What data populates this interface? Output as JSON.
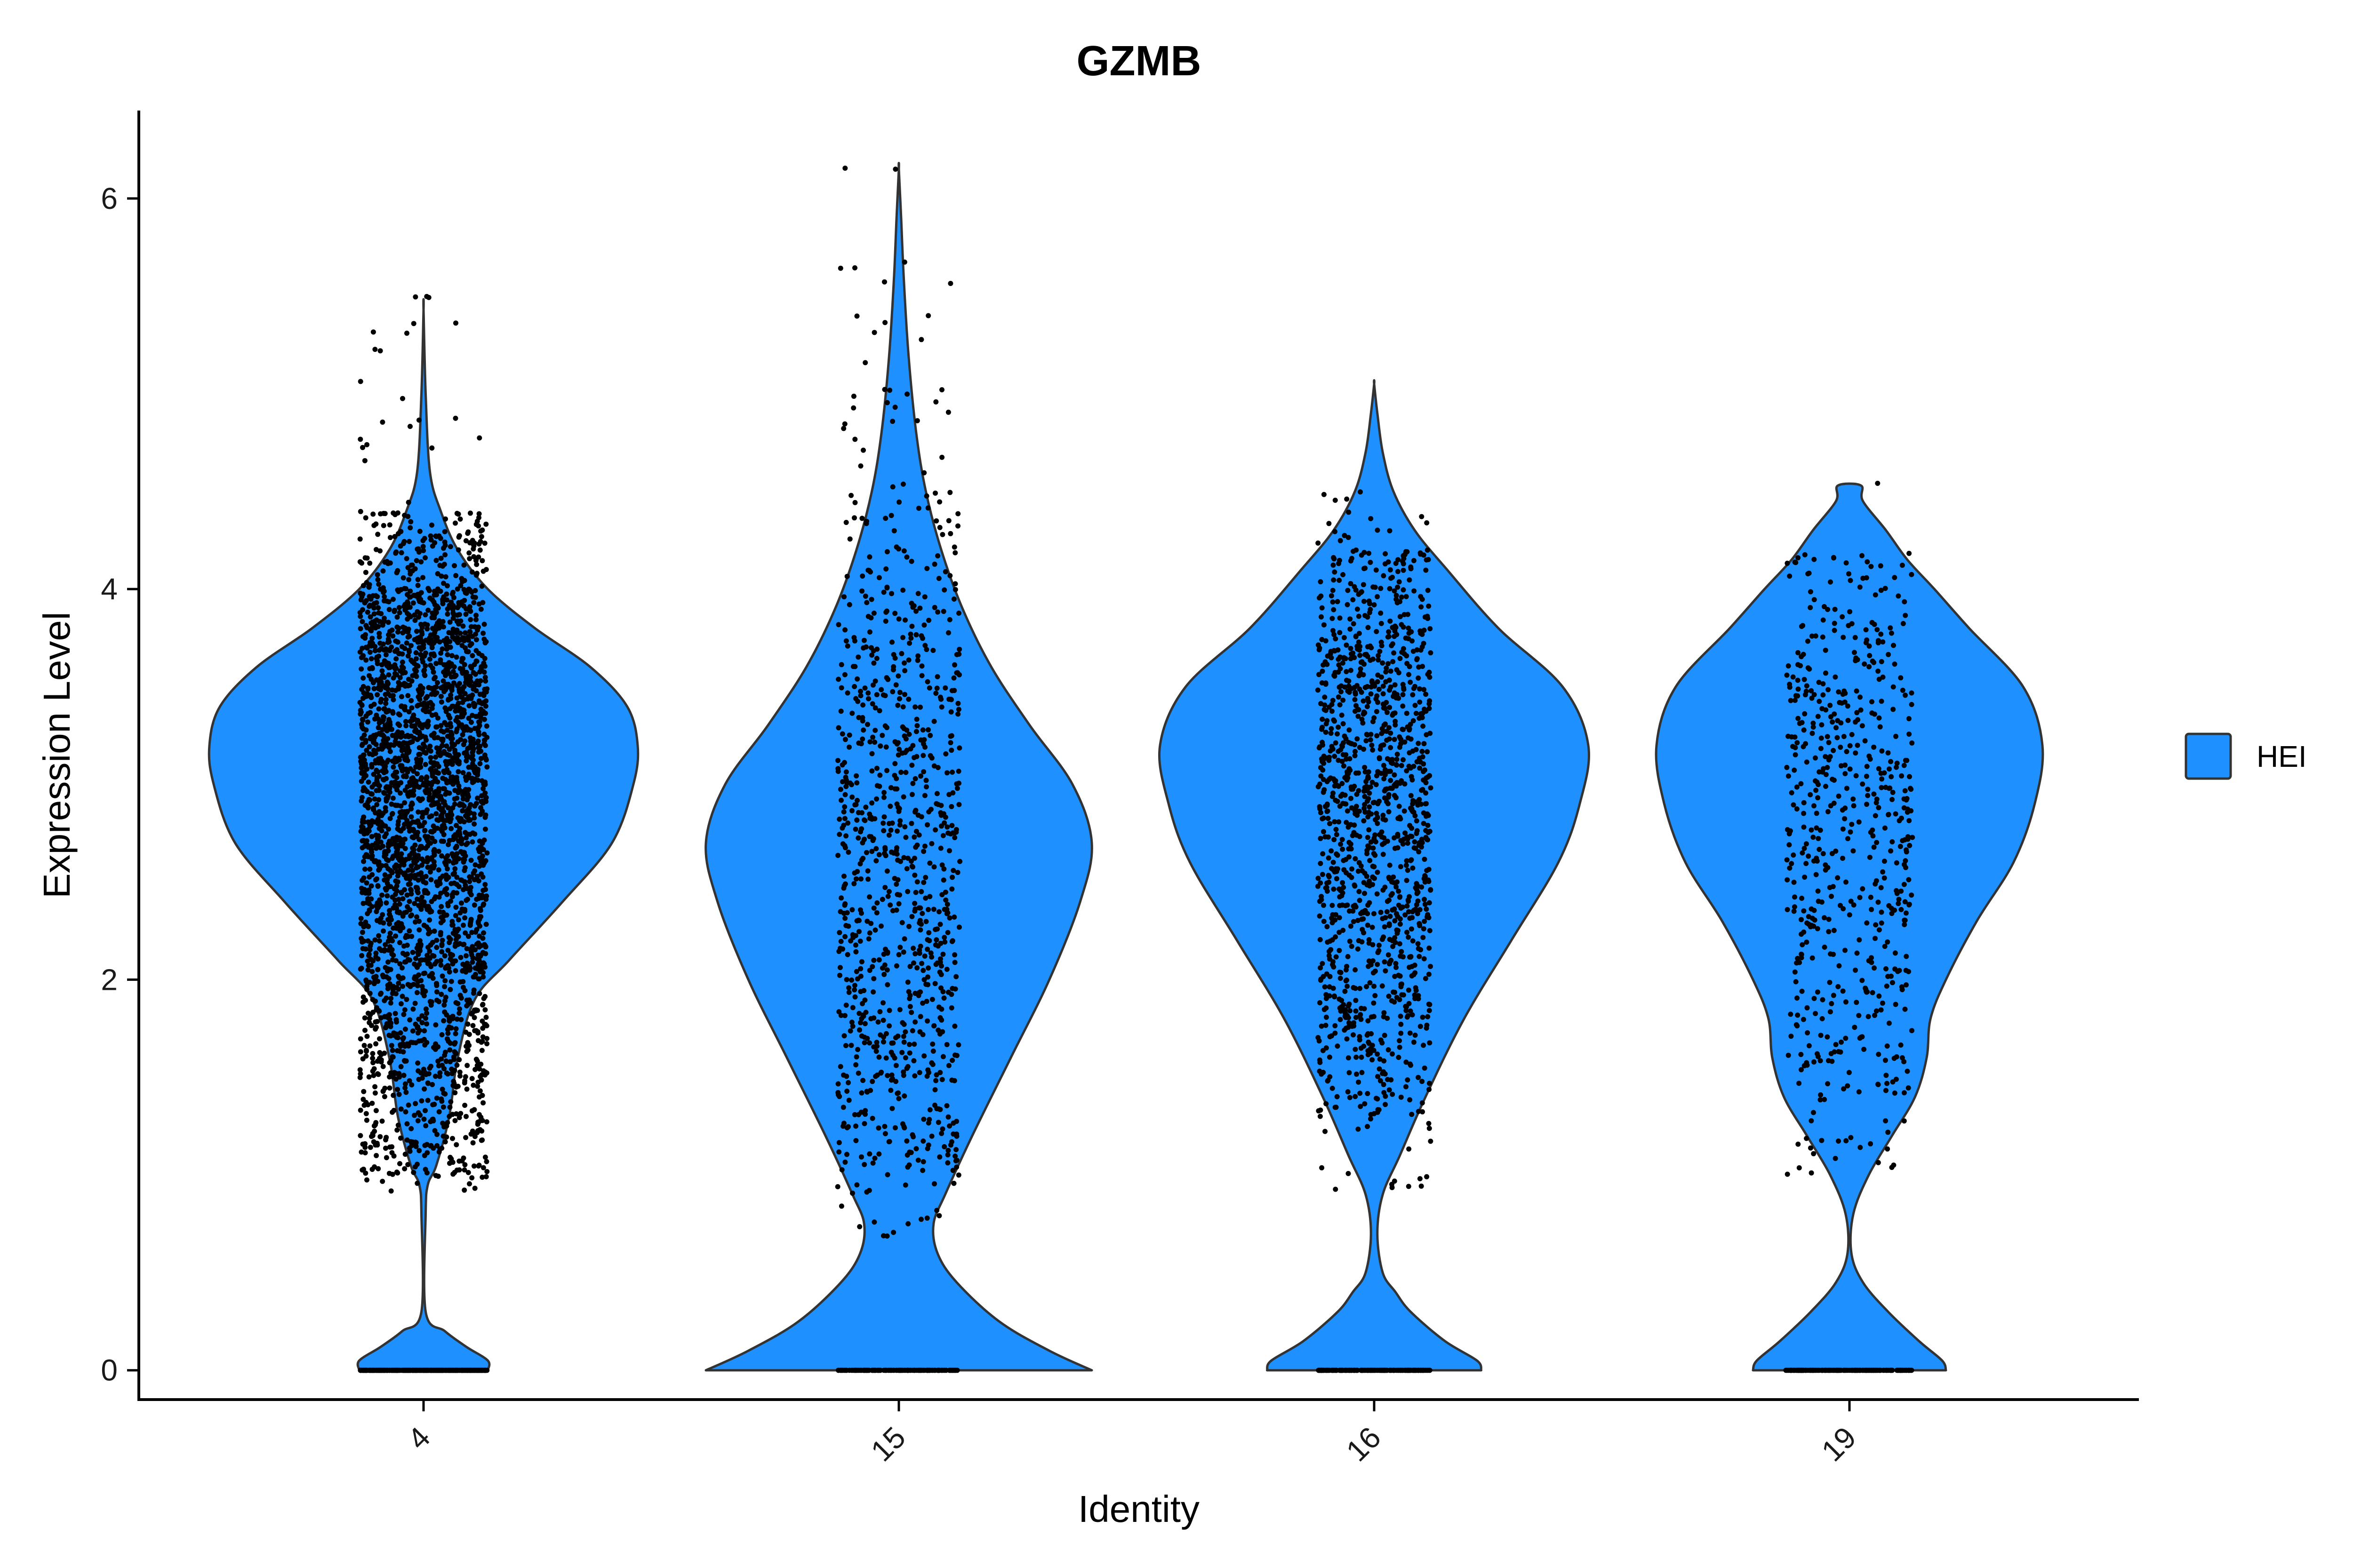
{
  "chart_data": {
    "type": "violin",
    "title": "GZMB",
    "xlabel": "Identity",
    "ylabel": "Expression Level",
    "ylim": [
      -0.15,
      6.45
    ],
    "yticks": [
      0,
      2,
      4,
      6
    ],
    "categories": [
      "4",
      "15",
      "16",
      "19"
    ],
    "legend": {
      "position": "right",
      "entries": [
        "HEI"
      ]
    },
    "fill_color": "#1E90FF",
    "outline_color": "#333333",
    "point_color": "#000000",
    "series": [
      {
        "name": "HEI",
        "violins": [
          {
            "category": "4",
            "max": 5.43,
            "profile": [
              [
                0,
                0.3
              ],
              [
                0.05,
                0.3
              ],
              [
                0.12,
                0.2
              ],
              [
                0.2,
                0.1
              ],
              [
                0.3,
                0.01
              ],
              [
                0.8,
                0.01
              ],
              [
                0.95,
                0.02
              ],
              [
                1.05,
                0.06
              ],
              [
                1.3,
                0.12
              ],
              [
                1.6,
                0.16
              ],
              [
                1.9,
                0.24
              ],
              [
                2.1,
                0.4
              ],
              [
                2.4,
                0.65
              ],
              [
                2.7,
                0.88
              ],
              [
                3.0,
                0.98
              ],
              [
                3.2,
                1.0
              ],
              [
                3.4,
                0.95
              ],
              [
                3.6,
                0.78
              ],
              [
                3.8,
                0.52
              ],
              [
                4.0,
                0.3
              ],
              [
                4.2,
                0.16
              ],
              [
                4.4,
                0.08
              ],
              [
                4.6,
                0.03
              ],
              [
                5.0,
                0.01
              ],
              [
                5.43,
                0.0
              ]
            ],
            "jitter": [
              [
                0,
                0.0,
                500
              ],
              [
                0.9,
                1.0,
                12
              ],
              [
                1.0,
                1.5,
                220
              ],
              [
                1.5,
                2.0,
                330
              ],
              [
                2.0,
                2.5,
                450
              ],
              [
                2.5,
                3.0,
                600
              ],
              [
                3.0,
                3.5,
                650
              ],
              [
                3.5,
                4.0,
                520
              ],
              [
                4.0,
                4.4,
                160
              ],
              [
                4.4,
                5.5,
                22
              ]
            ]
          },
          {
            "category": "15",
            "max": 6.15,
            "profile": [
              [
                0,
                1.0
              ],
              [
                0.1,
                0.78
              ],
              [
                0.25,
                0.52
              ],
              [
                0.45,
                0.3
              ],
              [
                0.6,
                0.2
              ],
              [
                0.75,
                0.18
              ],
              [
                0.9,
                0.24
              ],
              [
                1.2,
                0.38
              ],
              [
                1.6,
                0.58
              ],
              [
                2.0,
                0.78
              ],
              [
                2.4,
                0.94
              ],
              [
                2.7,
                1.0
              ],
              [
                3.0,
                0.9
              ],
              [
                3.3,
                0.68
              ],
              [
                3.6,
                0.48
              ],
              [
                3.9,
                0.33
              ],
              [
                4.2,
                0.22
              ],
              [
                4.5,
                0.14
              ],
              [
                4.8,
                0.09
              ],
              [
                5.2,
                0.05
              ],
              [
                5.6,
                0.025
              ],
              [
                5.9,
                0.012
              ],
              [
                6.15,
                0.0
              ]
            ],
            "jitter": [
              [
                0,
                0.0,
                160
              ],
              [
                0.65,
                1.0,
                20
              ],
              [
                1.0,
                1.5,
                110
              ],
              [
                1.5,
                2.0,
                150
              ],
              [
                2.0,
                2.5,
                160
              ],
              [
                2.5,
                3.0,
                170
              ],
              [
                3.0,
                3.5,
                140
              ],
              [
                3.5,
                4.0,
                100
              ],
              [
                4.0,
                4.5,
                50
              ],
              [
                4.5,
                5.0,
                18
              ],
              [
                5.0,
                5.7,
                14
              ],
              [
                6.1,
                6.16,
                2
              ]
            ]
          },
          {
            "category": "16",
            "max": 5.05,
            "profile": [
              [
                0,
                0.5
              ],
              [
                0.05,
                0.48
              ],
              [
                0.15,
                0.33
              ],
              [
                0.3,
                0.17
              ],
              [
                0.4,
                0.1
              ],
              [
                0.5,
                0.04
              ],
              [
                0.7,
                0.015
              ],
              [
                0.9,
                0.04
              ],
              [
                1.1,
                0.12
              ],
              [
                1.4,
                0.24
              ],
              [
                1.8,
                0.42
              ],
              [
                2.2,
                0.64
              ],
              [
                2.6,
                0.86
              ],
              [
                2.9,
                0.96
              ],
              [
                3.2,
                1.0
              ],
              [
                3.5,
                0.88
              ],
              [
                3.8,
                0.58
              ],
              [
                4.1,
                0.34
              ],
              [
                4.3,
                0.19
              ],
              [
                4.5,
                0.09
              ],
              [
                4.7,
                0.04
              ],
              [
                4.9,
                0.015
              ],
              [
                5.05,
                0.0
              ]
            ],
            "jitter": [
              [
                0,
                0.0,
                220
              ],
              [
                0.9,
                1.3,
                18
              ],
              [
                1.3,
                1.8,
                130
              ],
              [
                1.8,
                2.3,
                200
              ],
              [
                2.3,
                2.8,
                260
              ],
              [
                2.8,
                3.3,
                300
              ],
              [
                3.3,
                3.8,
                250
              ],
              [
                3.8,
                4.2,
                120
              ],
              [
                4.2,
                4.5,
                16
              ]
            ]
          },
          {
            "category": "19",
            "max": 4.53,
            "profile": [
              [
                0,
                0.5
              ],
              [
                0.05,
                0.48
              ],
              [
                0.15,
                0.36
              ],
              [
                0.3,
                0.2
              ],
              [
                0.45,
                0.07
              ],
              [
                0.6,
                0.01
              ],
              [
                0.8,
                0.02
              ],
              [
                1.0,
                0.1
              ],
              [
                1.2,
                0.22
              ],
              [
                1.4,
                0.34
              ],
              [
                1.6,
                0.4
              ],
              [
                1.8,
                0.42
              ],
              [
                2.0,
                0.5
              ],
              [
                2.3,
                0.66
              ],
              [
                2.6,
                0.85
              ],
              [
                2.9,
                0.96
              ],
              [
                3.2,
                1.0
              ],
              [
                3.5,
                0.9
              ],
              [
                3.8,
                0.62
              ],
              [
                4.0,
                0.44
              ],
              [
                4.15,
                0.3
              ],
              [
                4.3,
                0.19
              ],
              [
                4.45,
                0.07
              ],
              [
                4.53,
                0.06
              ]
            ],
            "jitter": [
              [
                0,
                0.0,
                200
              ],
              [
                1.0,
                1.4,
                25
              ],
              [
                1.4,
                1.8,
                60
              ],
              [
                1.8,
                2.3,
                90
              ],
              [
                2.3,
                2.8,
                120
              ],
              [
                2.8,
                3.3,
                130
              ],
              [
                3.3,
                3.8,
                110
              ],
              [
                3.8,
                4.2,
                50
              ],
              [
                4.5,
                4.56,
                1
              ]
            ]
          }
        ]
      }
    ]
  }
}
